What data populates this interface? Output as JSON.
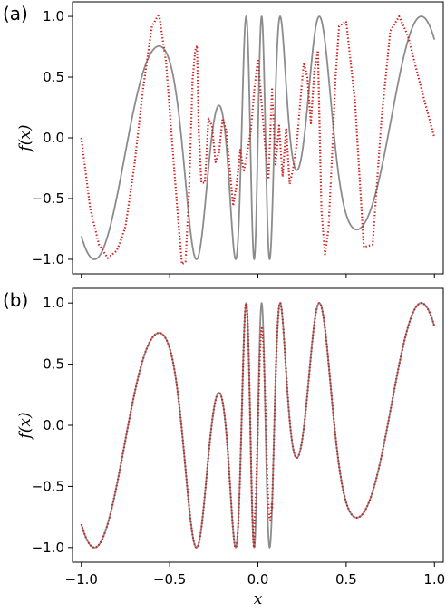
{
  "chart_data": [
    {
      "type": "line",
      "panel_label": "(a)",
      "ylabel": "f(x)",
      "xlabel": "",
      "xlim": [
        -1.05,
        1.05
      ],
      "ylim": [
        -1.12,
        1.12
      ],
      "xticks": [
        -1.0,
        -0.5,
        0.0,
        0.5,
        1.0
      ],
      "xtick_labels": [
        "",
        "",
        "",
        "",
        ""
      ],
      "yticks": [
        -1.0,
        -0.5,
        0.0,
        0.5,
        1.0
      ],
      "ytick_labels": [
        "−1.0",
        "−0.5",
        "0.0",
        "0.5",
        "1.0"
      ],
      "grid": false,
      "series": [
        {
          "style": "solid",
          "color": "#8c8c8c",
          "function": "sin(pi*x*(2.7 + 21*exp(-(x/0.28)^2)))"
        },
        {
          "style": "dotted",
          "color": "#cc2222",
          "x": [
            -1.0,
            -0.95,
            -0.9,
            -0.85,
            -0.8,
            -0.78,
            -0.75,
            -0.7,
            -0.65,
            -0.6,
            -0.56,
            -0.52,
            -0.48,
            -0.45,
            -0.43,
            -0.41,
            -0.39,
            -0.37,
            -0.355,
            -0.345,
            -0.335,
            -0.32,
            -0.3,
            -0.28,
            -0.26,
            -0.24,
            -0.22,
            -0.2,
            -0.18,
            -0.16,
            -0.14,
            -0.12,
            -0.1,
            -0.08,
            -0.06,
            -0.04,
            -0.02,
            0.0,
            0.02,
            0.04,
            0.06,
            0.08,
            0.1,
            0.12,
            0.14,
            0.16,
            0.18,
            0.2,
            0.22,
            0.24,
            0.26,
            0.28,
            0.3,
            0.32,
            0.34,
            0.36,
            0.38,
            0.4,
            0.42,
            0.44,
            0.46,
            0.5,
            0.55,
            0.6,
            0.65,
            0.7,
            0.75,
            0.8,
            0.85,
            0.9,
            0.95,
            1.0
          ],
          "y": [
            0.0,
            -0.58,
            -0.88,
            -0.99,
            -0.93,
            -0.86,
            -0.73,
            -0.23,
            0.41,
            0.92,
            1.02,
            0.62,
            -0.15,
            -0.7,
            -1.04,
            -1.02,
            -0.45,
            0.48,
            0.72,
            0.76,
            0.05,
            -0.37,
            -0.37,
            0.16,
            0.1,
            -0.2,
            -0.12,
            0.16,
            0.06,
            -0.25,
            -0.56,
            -0.38,
            -0.1,
            -0.28,
            -0.12,
            0.06,
            0.4,
            0.65,
            0.3,
            -0.05,
            -0.34,
            0.4,
            -0.22,
            0.1,
            -0.32,
            0.08,
            -0.38,
            -0.25,
            -0.05,
            0.3,
            0.62,
            0.5,
            0.12,
            0.55,
            0.72,
            -0.6,
            -0.96,
            -0.75,
            -0.15,
            0.5,
            0.92,
            0.96,
            0.3,
            -0.9,
            -0.88,
            0.15,
            0.88,
            1.0,
            0.84,
            0.55,
            0.27,
            0.0
          ]
        }
      ]
    },
    {
      "type": "line",
      "panel_label": "(b)",
      "ylabel": "f(x)",
      "xlabel": "x",
      "xlim": [
        -1.05,
        1.05
      ],
      "ylim": [
        -1.12,
        1.12
      ],
      "xticks": [
        -1.0,
        -0.5,
        0.0,
        0.5,
        1.0
      ],
      "xtick_labels": [
        "−1.0",
        "−0.5",
        "0.0",
        "0.5",
        "1.0"
      ],
      "yticks": [
        -1.0,
        -0.5,
        0.0,
        0.5,
        1.0
      ],
      "ytick_labels": [
        "−1.0",
        "−0.5",
        "0.0",
        "0.5",
        "1.0"
      ],
      "grid": false,
      "series": [
        {
          "style": "solid",
          "color": "#8c8c8c",
          "function": "sin(pi*x*(2.7 + 21*exp(-(x/0.28)^2)))"
        },
        {
          "style": "dotted",
          "color": "#cc2222",
          "function": "sin(pi*x*(2.7 + 21*exp(-(x/0.28)^2)))",
          "deviation_region": [
            -0.02,
            0.08
          ]
        }
      ]
    }
  ]
}
